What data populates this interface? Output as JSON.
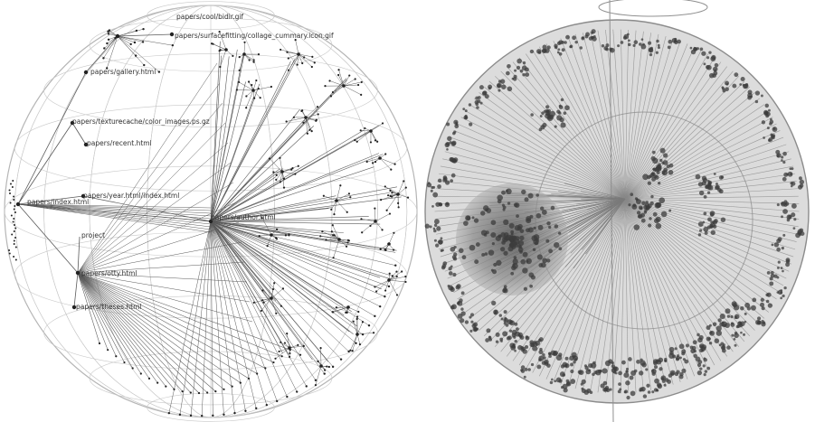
{
  "left_figure": {
    "labels": [
      "papers/cool/bidir.gif",
      "papers/surfacefitting/collage_cummary.icon.gif",
      "papers/gallery.html",
      "papers/texturecache/color_images.ps.gz",
      "papers/recent.html",
      "papers/year.html/index.html",
      "papers/index.html",
      "papers/author.html",
      "project",
      "papers/otty.html",
      "papers/theses.html"
    ]
  },
  "colors": {
    "sphere_grid": "#c8c8c8",
    "edge": "#5a5a5a",
    "node": "#222222",
    "cluster_dark": "#3c3c3c",
    "focus_disc": "#6e6e6e"
  }
}
